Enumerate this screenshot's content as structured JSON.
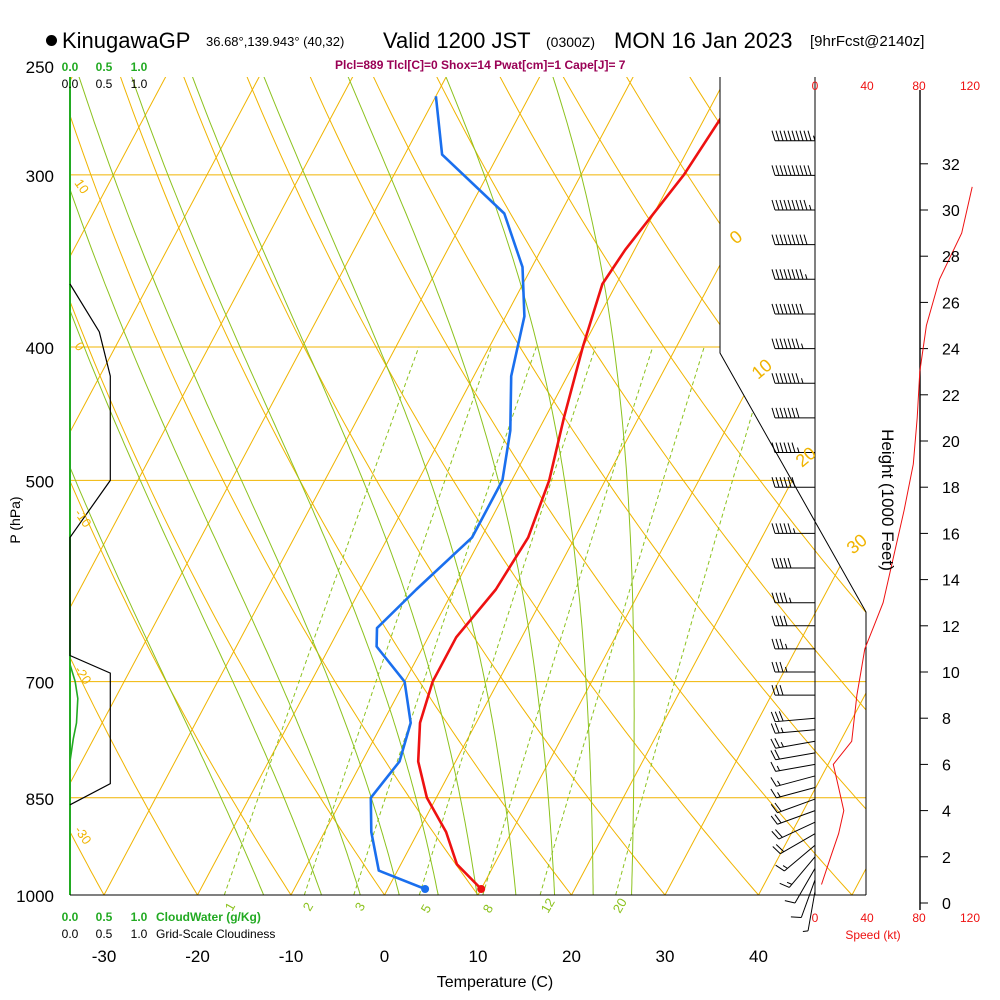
{
  "header": {
    "station": "KinugawaGP",
    "coords": "36.68°,139.943° (40,32)",
    "valid_main": "Valid 1200 JST",
    "valid_utc": "(0300Z)",
    "valid_date": "MON 16 Jan 2023",
    "forecast": "[9hrFcst@2140z]",
    "indices": "Plcl=889 Tlcl[C]=0 Shox=14 Pwat[cm]=1 Cape[J]= 7"
  },
  "colors": {
    "temperature": "#ee1111",
    "dewpoint": "#1a6fee",
    "isotherm": "#f0b400",
    "dry_adiabat": "#f0b400",
    "moist_adiabat": "#8cc21e",
    "mixing_ratio": "#8cc21e",
    "cloudwater": "#22aa22",
    "cloudiness": "#000000",
    "speed": "#ee1111",
    "indices": "#990055"
  },
  "chart_data": {
    "type": "skew-t",
    "title": "KinugawaGP Valid 1200 JST (0300Z) MON 16 Jan 2023",
    "xlabel": "Temperature (C)",
    "ylabel": "P (hPa)",
    "height_label": "Height (1000 Feet)",
    "x_ticks": [
      -30,
      -20,
      -10,
      0,
      10,
      20,
      30,
      40
    ],
    "pressure_levels": [
      250,
      300,
      400,
      500,
      700,
      850,
      1000
    ],
    "height_ticks": [
      0,
      2,
      4,
      6,
      8,
      10,
      12,
      14,
      16,
      18,
      20,
      22,
      24,
      26,
      28,
      30,
      32
    ],
    "temperature_profile": [
      {
        "p": 263,
        "t": -8
      },
      {
        "p": 300,
        "t": -9
      },
      {
        "p": 340,
        "t": -11
      },
      {
        "p": 360,
        "t": -11.5
      },
      {
        "p": 400,
        "t": -10
      },
      {
        "p": 450,
        "t": -8
      },
      {
        "p": 500,
        "t": -6
      },
      {
        "p": 550,
        "t": -5
      },
      {
        "p": 600,
        "t": -5.5
      },
      {
        "p": 650,
        "t": -7
      },
      {
        "p": 700,
        "t": -7
      },
      {
        "p": 750,
        "t": -6
      },
      {
        "p": 800,
        "t": -4
      },
      {
        "p": 850,
        "t": -1
      },
      {
        "p": 900,
        "t": 3
      },
      {
        "p": 950,
        "t": 6
      },
      {
        "p": 990,
        "t": 10
      }
    ],
    "dewpoint_profile": [
      {
        "p": 263,
        "t": -40
      },
      {
        "p": 290,
        "t": -36
      },
      {
        "p": 320,
        "t": -26
      },
      {
        "p": 350,
        "t": -21
      },
      {
        "p": 380,
        "t": -18
      },
      {
        "p": 420,
        "t": -16
      },
      {
        "p": 460,
        "t": -13
      },
      {
        "p": 500,
        "t": -11
      },
      {
        "p": 550,
        "t": -11
      },
      {
        "p": 600,
        "t": -14
      },
      {
        "p": 640,
        "t": -16
      },
      {
        "p": 660,
        "t": -15
      },
      {
        "p": 700,
        "t": -10
      },
      {
        "p": 750,
        "t": -7
      },
      {
        "p": 800,
        "t": -6
      },
      {
        "p": 850,
        "t": -7
      },
      {
        "p": 900,
        "t": -5
      },
      {
        "p": 960,
        "t": -2
      },
      {
        "p": 990,
        "t": 4
      }
    ],
    "surface": {
      "t": 10,
      "td": 4,
      "p": 990
    },
    "isotherm_labels": [
      "0",
      "10",
      "20",
      "30"
    ],
    "dry_adiabat_labels": [
      "10",
      "0",
      "-10",
      "-20",
      "-30"
    ],
    "mixing_ratio_labels": [
      "1",
      "2",
      "3",
      "5",
      "8",
      "12",
      "20"
    ],
    "cloudwater": {
      "label": "CloudWater (g/Kg)",
      "ticks": [
        "0.0",
        "0.5",
        "1.0"
      ],
      "profile": [
        {
          "p": 680,
          "v": 0.0
        },
        {
          "p": 700,
          "v": 0.08
        },
        {
          "p": 720,
          "v": 0.12
        },
        {
          "p": 750,
          "v": 0.1
        },
        {
          "p": 770,
          "v": 0.05
        },
        {
          "p": 800,
          "v": 0.0
        }
      ]
    },
    "cloudiness": {
      "label": "Grid-Scale Cloudiness",
      "ticks": [
        "0.0",
        "0.5",
        "1.0"
      ],
      "profile": [
        {
          "p": 360,
          "v": 0.0
        },
        {
          "p": 390,
          "v": 0.45
        },
        {
          "p": 420,
          "v": 0.62
        },
        {
          "p": 500,
          "v": 0.62
        },
        {
          "p": 550,
          "v": 0.0
        },
        {
          "p": 670,
          "v": 0.0
        },
        {
          "p": 690,
          "v": 0.62
        },
        {
          "p": 830,
          "v": 0.62
        },
        {
          "p": 860,
          "v": 0.0
        }
      ]
    },
    "wind_speed": {
      "label": "Speed (kt)",
      "ticks": [
        "0",
        "40",
        "80",
        "120"
      ],
      "profile": [
        {
          "h": 0.8,
          "s": 5
        },
        {
          "h": 2,
          "s": 12
        },
        {
          "h": 3,
          "s": 18
        },
        {
          "h": 4,
          "s": 22
        },
        {
          "h": 5,
          "s": 18
        },
        {
          "h": 6,
          "s": 14
        },
        {
          "h": 7,
          "s": 28
        },
        {
          "h": 8,
          "s": 30
        },
        {
          "h": 9,
          "s": 32
        },
        {
          "h": 10,
          "s": 35
        },
        {
          "h": 11,
          "s": 38
        },
        {
          "h": 12,
          "s": 45
        },
        {
          "h": 13,
          "s": 52
        },
        {
          "h": 15,
          "s": 60
        },
        {
          "h": 17,
          "s": 68
        },
        {
          "h": 19,
          "s": 75
        },
        {
          "h": 21,
          "s": 78
        },
        {
          "h": 23,
          "s": 80
        },
        {
          "h": 25,
          "s": 85
        },
        {
          "h": 27,
          "s": 95
        },
        {
          "h": 29,
          "s": 112
        },
        {
          "h": 31,
          "s": 120
        }
      ]
    },
    "wind_barbs": [
      {
        "h": 0.5,
        "dir": 190,
        "kt": 5
      },
      {
        "h": 1.0,
        "dir": 200,
        "kt": 10
      },
      {
        "h": 1.5,
        "dir": 210,
        "kt": 10
      },
      {
        "h": 2.0,
        "dir": 220,
        "kt": 15
      },
      {
        "h": 2.5,
        "dir": 230,
        "kt": 15
      },
      {
        "h": 3.0,
        "dir": 240,
        "kt": 20
      },
      {
        "h": 3.5,
        "dir": 245,
        "kt": 20
      },
      {
        "h": 4.0,
        "dir": 250,
        "kt": 20
      },
      {
        "h": 4.5,
        "dir": 250,
        "kt": 20
      },
      {
        "h": 5.0,
        "dir": 255,
        "kt": 15
      },
      {
        "h": 5.5,
        "dir": 255,
        "kt": 15
      },
      {
        "h": 6.0,
        "dir": 260,
        "kt": 15
      },
      {
        "h": 6.5,
        "dir": 260,
        "kt": 20
      },
      {
        "h": 7.0,
        "dir": 260,
        "kt": 25
      },
      {
        "h": 7.5,
        "dir": 265,
        "kt": 25
      },
      {
        "h": 8.0,
        "dir": 265,
        "kt": 30
      },
      {
        "h": 9.0,
        "dir": 270,
        "kt": 30
      },
      {
        "h": 10.0,
        "dir": 270,
        "kt": 35
      },
      {
        "h": 11.0,
        "dir": 270,
        "kt": 35
      },
      {
        "h": 12.0,
        "dir": 270,
        "kt": 40
      },
      {
        "h": 13.0,
        "dir": 270,
        "kt": 45
      },
      {
        "h": 14.5,
        "dir": 270,
        "kt": 50
      },
      {
        "h": 16.0,
        "dir": 270,
        "kt": 55
      },
      {
        "h": 18.0,
        "dir": 270,
        "kt": 60
      },
      {
        "h": 19.5,
        "dir": 270,
        "kt": 65
      },
      {
        "h": 21.0,
        "dir": 270,
        "kt": 70
      },
      {
        "h": 22.5,
        "dir": 270,
        "kt": 75
      },
      {
        "h": 24.0,
        "dir": 270,
        "kt": 75
      },
      {
        "h": 25.5,
        "dir": 270,
        "kt": 80
      },
      {
        "h": 27.0,
        "dir": 270,
        "kt": 85
      },
      {
        "h": 28.5,
        "dir": 270,
        "kt": 90
      },
      {
        "h": 30.0,
        "dir": 270,
        "kt": 95
      },
      {
        "h": 31.5,
        "dir": 270,
        "kt": 100
      },
      {
        "h": 33.0,
        "dir": 270,
        "kt": 105
      }
    ]
  }
}
